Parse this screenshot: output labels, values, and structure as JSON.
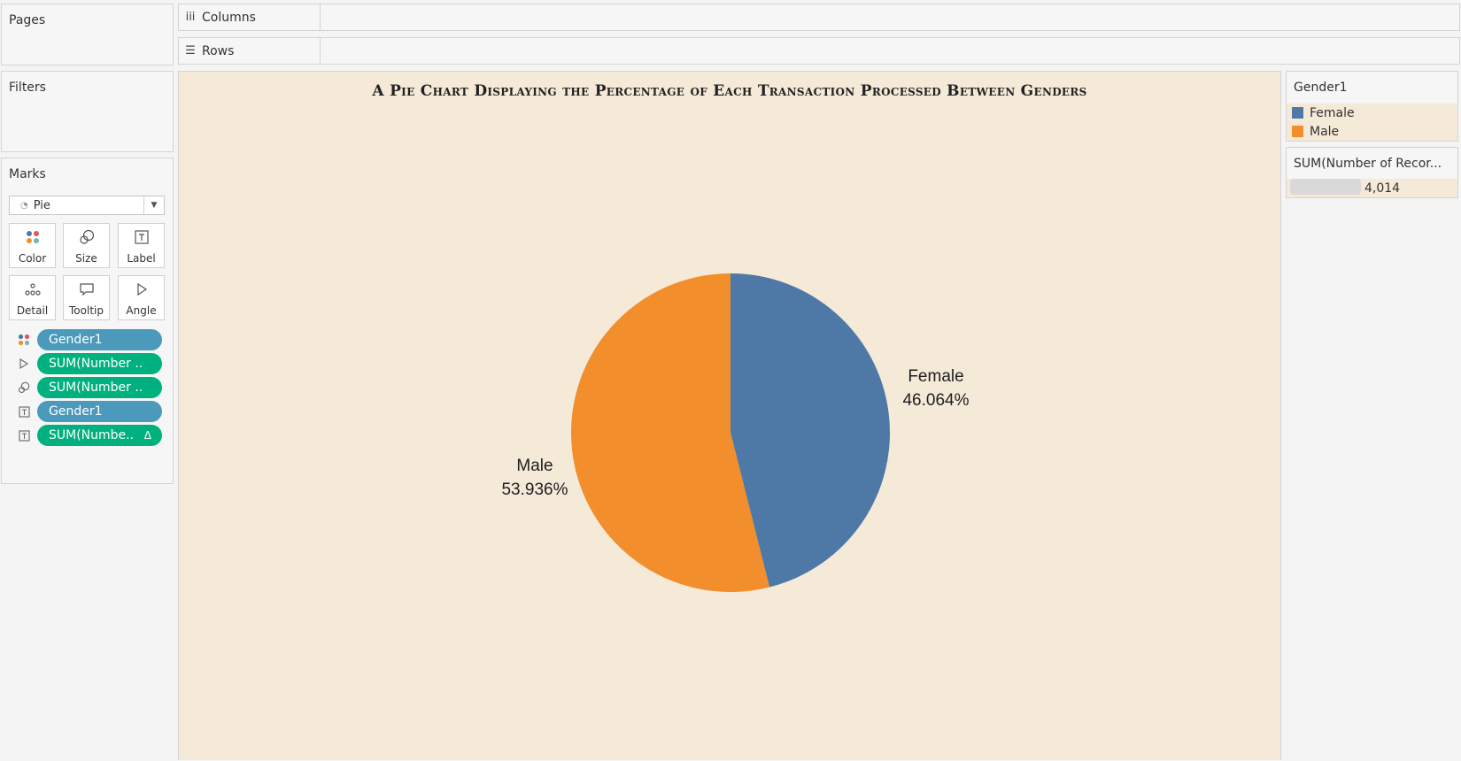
{
  "panels": {
    "pages_title": "Pages",
    "filters_title": "Filters",
    "marks_title": "Marks"
  },
  "shelves": {
    "columns_label": "Columns",
    "rows_label": "Rows"
  },
  "marks": {
    "mark_type": "Pie",
    "buttons": [
      {
        "label": "Color",
        "icon": "color-dots-icon"
      },
      {
        "label": "Size",
        "icon": "size-icon"
      },
      {
        "label": "Label",
        "icon": "label-icon"
      },
      {
        "label": "Detail",
        "icon": "detail-icon"
      },
      {
        "label": "Tooltip",
        "icon": "tooltip-icon"
      },
      {
        "label": "Angle",
        "icon": "angle-icon"
      }
    ],
    "pills": [
      {
        "text": "Gender1",
        "kind": "dimension",
        "icon": "color-dots-icon"
      },
      {
        "text": "SUM(Number ..",
        "kind": "measure",
        "icon": "angle-icon"
      },
      {
        "text": "SUM(Number ..",
        "kind": "measure",
        "icon": "size-icon"
      },
      {
        "text": "Gender1",
        "kind": "dimension",
        "icon": "label-icon"
      },
      {
        "text": "SUM(Numbe..",
        "kind": "measure",
        "icon": "label-icon",
        "suffix": "Δ"
      }
    ]
  },
  "colors": {
    "female": "#4e79a7",
    "male": "#f28e2b",
    "viz_background": "#f5e9d8",
    "dimension_pill": "#4b9abb",
    "measure_pill": "#00b17f"
  },
  "legend": {
    "color_title": "Gender1",
    "items": [
      "Female",
      "Male"
    ],
    "size_title": "SUM(Number of Recor...",
    "size_value": "4,014"
  },
  "chart_data": {
    "type": "pie",
    "title": "A Pie Chart Displaying the Percentage of Each Transaction Processed Between Genders",
    "categories": [
      "Female",
      "Male"
    ],
    "values": [
      46.064,
      53.936
    ],
    "value_labels": [
      "46.064%",
      "53.936%"
    ],
    "total": "4,014",
    "legend_position": "right"
  }
}
